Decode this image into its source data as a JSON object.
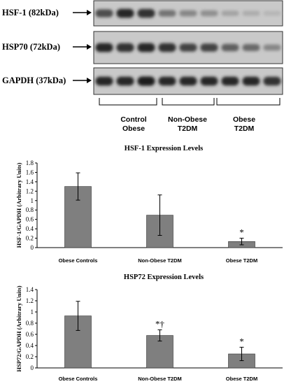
{
  "blot": {
    "rows": [
      {
        "label": "HSF-1 (82kDa)",
        "intensities": [
          0.65,
          0.85,
          0.8,
          0.45,
          0.35,
          0.3,
          0.2,
          0.15,
          0.1
        ]
      },
      {
        "label": "HSP70 (72kDa)",
        "intensities": [
          0.85,
          0.8,
          0.85,
          0.8,
          0.7,
          0.7,
          0.55,
          0.5,
          0.35
        ]
      },
      {
        "label": "GAPDH (37kDa)",
        "intensities": [
          0.85,
          0.85,
          0.9,
          0.85,
          0.85,
          0.85,
          0.85,
          0.85,
          0.8
        ]
      }
    ],
    "groups": [
      {
        "line1": "Control",
        "line2": "Obese"
      },
      {
        "line1": "Non-Obese",
        "line2": "T2DM"
      },
      {
        "line1": "Obese",
        "line2": "T2DM"
      }
    ]
  },
  "chart_data": [
    {
      "type": "bar",
      "title": "HSF-1 Expression Levels",
      "ylabel": "HSF-1/GAPDH (Arbitrary Units)",
      "xlabel": "",
      "categories": [
        "Obese Controls",
        "Non-Obese T2DM",
        "Obese T2DM"
      ],
      "values": [
        1.3,
        0.69,
        0.13
      ],
      "errors": [
        0.29,
        0.43,
        0.07
      ],
      "annotations": [
        "",
        "",
        "*"
      ],
      "ylim": [
        0,
        1.8
      ],
      "yticks": [
        "0",
        "0.2",
        "0.4",
        "0.6",
        "0.8",
        "1",
        "1.2",
        "1.4",
        "1.6",
        "1.8"
      ],
      "bar_color": "#7f7f7f",
      "grid": false
    },
    {
      "type": "bar",
      "title": "HSP72 Expression Levels",
      "ylabel": "HSP72/GAPDH (Arbitrary Units)",
      "xlabel": "",
      "categories": [
        "Obese Controls",
        "Non-Obese T2DM",
        "Obese T2DM"
      ],
      "values": [
        0.93,
        0.58,
        0.25
      ],
      "errors": [
        0.26,
        0.1,
        0.12
      ],
      "annotations": [
        "",
        "*†",
        "*"
      ],
      "ylim": [
        0,
        1.4
      ],
      "yticks": [
        "0",
        "0.2",
        "0.4",
        "0.6",
        "0.8",
        "1",
        "1.2",
        "1.4"
      ],
      "bar_color": "#7f7f7f",
      "grid": false
    }
  ]
}
